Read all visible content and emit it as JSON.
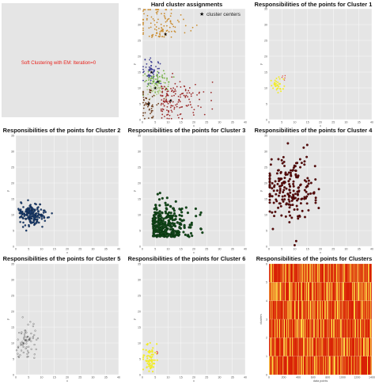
{
  "intro": {
    "text": "Soft Clustering with EM: Iteration=0"
  },
  "colors": {
    "panel_bg": "#e5e5e5",
    "grid": "#ffffff",
    "cluster_points": [
      "#f2ec2a",
      "#1b3f73",
      "#124a1a",
      "#5c0a0a",
      "#333333",
      "#f2ec2a"
    ],
    "heatmap_low": "#d81e05",
    "heatmap_high": "#ffe24a",
    "hard_clusters": [
      "#c98a2b",
      "#3a3a8f",
      "#6fae3f",
      "#b5d08a",
      "#9b2b2b",
      "#6b3a1a"
    ]
  },
  "icons": {
    "legend_marker": "star-icon"
  },
  "chart_data": [
    {
      "type": "scatter",
      "title": "Hard cluster assignments",
      "legend": {
        "label": "cluster centers",
        "placement": "top-right"
      },
      "xlim": [
        0,
        40
      ],
      "ylim": [
        0,
        35
      ],
      "xticks": [
        "0",
        "5",
        "10",
        "15",
        "20",
        "25",
        "30",
        "35",
        "40"
      ],
      "yticks": [
        "0",
        "5",
        "10",
        "15",
        "20",
        "25",
        "30",
        "35"
      ],
      "xlabel": "x",
      "ylabel": "y",
      "series": [
        {
          "shape": "cloud",
          "center": [
            7,
            26
          ],
          "spread": [
            5,
            6
          ],
          "count": 110
        },
        {
          "shape": "cloud",
          "center": [
            3.5,
            15
          ],
          "spread": [
            2,
            2
          ],
          "count": 55
        },
        {
          "shape": "cloud",
          "center": [
            6,
            12
          ],
          "spread": [
            3,
            1.5
          ],
          "count": 60
        },
        {
          "shape": "cloud",
          "center": [
            5,
            10
          ],
          "spread": [
            3,
            1.5
          ],
          "count": 50
        },
        {
          "shape": "cloud",
          "center": [
            10,
            6
          ],
          "spread": [
            6,
            3
          ],
          "count": 150
        },
        {
          "shape": "cloud",
          "center": [
            2.5,
            5
          ],
          "spread": [
            1.5,
            3
          ],
          "count": 50
        }
      ],
      "centers": [
        [
          9,
          27
        ],
        [
          3.5,
          15
        ],
        [
          6,
          12
        ],
        [
          5,
          10
        ],
        [
          11,
          6
        ],
        [
          2.5,
          5
        ]
      ]
    },
    {
      "type": "scatter",
      "title": "Responsibilities of the points for Cluster 1",
      "xlim": [
        0,
        40
      ],
      "ylim": [
        0,
        35
      ],
      "xticks": [
        "0",
        "5",
        "10",
        "15",
        "20",
        "25",
        "30",
        "35",
        "40"
      ],
      "yticks": [
        "0",
        "5",
        "10",
        "15",
        "20",
        "25",
        "30",
        "35"
      ],
      "xlabel": "x",
      "ylabel": "y",
      "series": [
        {
          "shape": "cloud",
          "center": [
            3.5,
            11
          ],
          "spread": [
            1.2,
            1.2
          ],
          "count": 35,
          "size": 1.0
        }
      ]
    },
    {
      "type": "scatter",
      "title": "Responsibilities of the points for Cluster 2",
      "xlim": [
        0,
        40
      ],
      "ylim": [
        0,
        35
      ],
      "xticks": [
        "0",
        "5",
        "10",
        "15",
        "20",
        "25",
        "30",
        "35",
        "40"
      ],
      "yticks": [
        "0",
        "5",
        "10",
        "15",
        "20",
        "25",
        "30",
        "35"
      ],
      "xlabel": "x",
      "ylabel": "y",
      "series": [
        {
          "shape": "cloud",
          "center": [
            6,
            10
          ],
          "spread": [
            2.6,
            1.6
          ],
          "count": 190,
          "size": 1.2
        }
      ]
    },
    {
      "type": "scatter",
      "title": "Responsibilities of the points for Cluster 3",
      "xlim": [
        0,
        40
      ],
      "ylim": [
        0,
        35
      ],
      "xticks": [
        "0",
        "5",
        "10",
        "15",
        "20",
        "25",
        "30",
        "35",
        "40"
      ],
      "yticks": [
        "0",
        "5",
        "10",
        "15",
        "20",
        "25",
        "30",
        "35"
      ],
      "xlabel": "x",
      "ylabel": "y",
      "series": [
        {
          "shape": "cloud",
          "center": [
            10,
            5
          ],
          "spread": [
            7,
            3
          ],
          "count": 320,
          "size": 1.5
        }
      ]
    },
    {
      "type": "scatter",
      "title": "Responsibilities of the points for Cluster 4",
      "xlim": [
        0,
        40
      ],
      "ylim": [
        0,
        35
      ],
      "xticks": [
        "0",
        "5",
        "10",
        "15",
        "20",
        "25",
        "30",
        "35",
        "40"
      ],
      "yticks": [
        "0",
        "5",
        "10",
        "15",
        "20",
        "25",
        "30",
        "35"
      ],
      "xlabel": "x",
      "ylabel": "y",
      "series": [
        {
          "shape": "cloud",
          "center": [
            8,
            18
          ],
          "spread": [
            5,
            5
          ],
          "count": 210,
          "size": 1.4
        }
      ]
    },
    {
      "type": "scatter",
      "title": "Responsibilities of the points for Cluster 5",
      "xlim": [
        0,
        40
      ],
      "ylim": [
        0,
        35
      ],
      "xticks": [
        "0",
        "5",
        "10",
        "15",
        "20",
        "25",
        "30",
        "35",
        "40"
      ],
      "yticks": [
        "0",
        "5",
        "10",
        "15",
        "20",
        "25",
        "30",
        "35"
      ],
      "xlabel": "x",
      "ylabel": "y",
      "series": [
        {
          "shape": "cloud",
          "center": [
            4,
            10
          ],
          "spread": [
            2.5,
            3
          ],
          "count": 70,
          "size": 0.9
        }
      ]
    },
    {
      "type": "scatter",
      "title": "Responsibilities of the points for Cluster 6",
      "xlim": [
        0,
        40
      ],
      "ylim": [
        0,
        35
      ],
      "xticks": [
        "0",
        "5",
        "10",
        "15",
        "20",
        "25",
        "30",
        "35",
        "40"
      ],
      "yticks": [
        "0",
        "5",
        "10",
        "15",
        "20",
        "25",
        "30",
        "35"
      ],
      "xlabel": "x",
      "ylabel": "y",
      "series": [
        {
          "shape": "cloud",
          "center": [
            3,
            5
          ],
          "spread": [
            1.3,
            2.2
          ],
          "count": 70,
          "size": 1.1
        }
      ]
    },
    {
      "type": "heatmap",
      "title": "Responsibilities of the points for Clusters",
      "xlabel": "data points",
      "ylabel": "clusters",
      "xticks": [
        "0",
        "200",
        "400",
        "600",
        "800",
        "1000",
        "1200",
        "1400"
      ],
      "yticks": [
        "0",
        "1",
        "2",
        "3",
        "4",
        "5",
        "6"
      ],
      "rows": 6,
      "columns": 130
    }
  ]
}
